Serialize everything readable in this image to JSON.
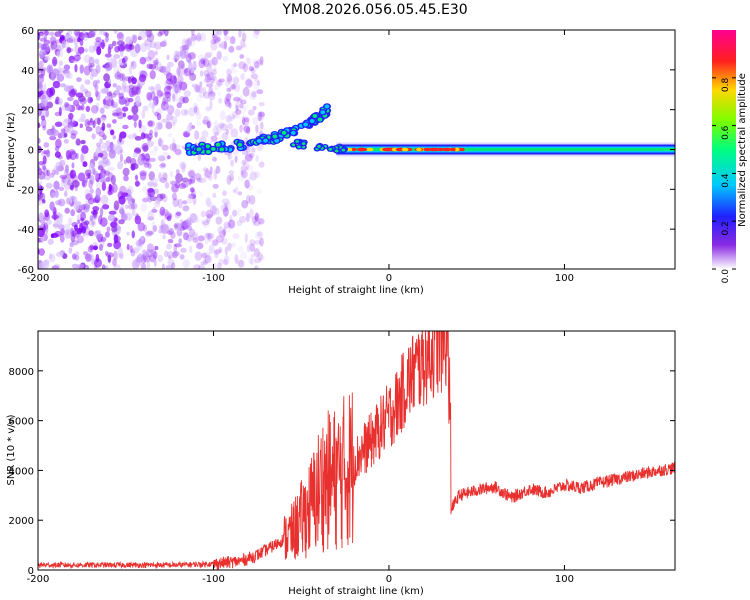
{
  "title": "YM08.2026.056.05.45.E30",
  "chart_data": [
    {
      "type": "heatmap",
      "xlabel": "Height of straight line (km)",
      "ylabel": "Frequency (Hz)",
      "xlim": [
        -200,
        163
      ],
      "ylim": [
        -60,
        60
      ],
      "xticks": [
        -200,
        -100,
        0,
        100
      ],
      "yticks": [
        -60,
        -40,
        -20,
        0,
        20,
        40,
        60
      ],
      "colorbar": {
        "label": "Normalized spectral amplitude",
        "range": [
          0,
          1
        ],
        "ticks": [
          0.0,
          0.2,
          0.4,
          0.6,
          0.8
        ],
        "tick_labels": [
          "0.0",
          "0.2",
          "0.4",
          "0.6",
          "0.8"
        ]
      },
      "features": [
        {
          "name": "noise",
          "x_range": [
            -200,
            -80
          ],
          "freq_range": [
            -60,
            60
          ]
        },
        {
          "name": "rising-trace",
          "points": [
            [
              -115,
              0
            ],
            [
              -100,
              1
            ],
            [
              -80,
              3
            ],
            [
              -65,
              6
            ],
            [
              -55,
              9
            ],
            [
              -45,
              13
            ],
            [
              -35,
              20
            ]
          ]
        },
        {
          "name": "zero-band",
          "x_range": [
            -30,
            163
          ],
          "freq": 0
        }
      ]
    },
    {
      "type": "line",
      "xlabel": "Height of straight line (km)",
      "ylabel": "SNR (10 * v/v)",
      "xlim": [
        -200,
        163
      ],
      "ylim": [
        0,
        9600
      ],
      "xticks": [
        -200,
        -100,
        0,
        100
      ],
      "yticks": [
        0,
        2000,
        4000,
        6000,
        8000
      ],
      "series": [
        {
          "name": "SNR",
          "color": "#e8302e",
          "x": [
            -200,
            -160,
            -120,
            -100,
            -85,
            -75,
            -65,
            -55,
            -45,
            -38,
            -30,
            -25,
            -20,
            -15,
            -10,
            -5,
            0,
            5,
            10,
            15,
            20,
            25,
            30,
            34,
            35,
            40,
            50,
            60,
            70,
            80,
            90,
            100,
            110,
            120,
            130,
            140,
            150,
            163
          ],
          "values": [
            200,
            200,
            200,
            250,
            350,
            600,
            1000,
            1500,
            2500,
            3500,
            3700,
            4000,
            4300,
            4800,
            5200,
            5700,
            6200,
            6700,
            7500,
            8000,
            8400,
            8800,
            9100,
            9300,
            2400,
            3000,
            3200,
            3350,
            2900,
            3250,
            3100,
            3400,
            3300,
            3500,
            3650,
            3800,
            3950,
            4100
          ]
        }
      ]
    }
  ]
}
